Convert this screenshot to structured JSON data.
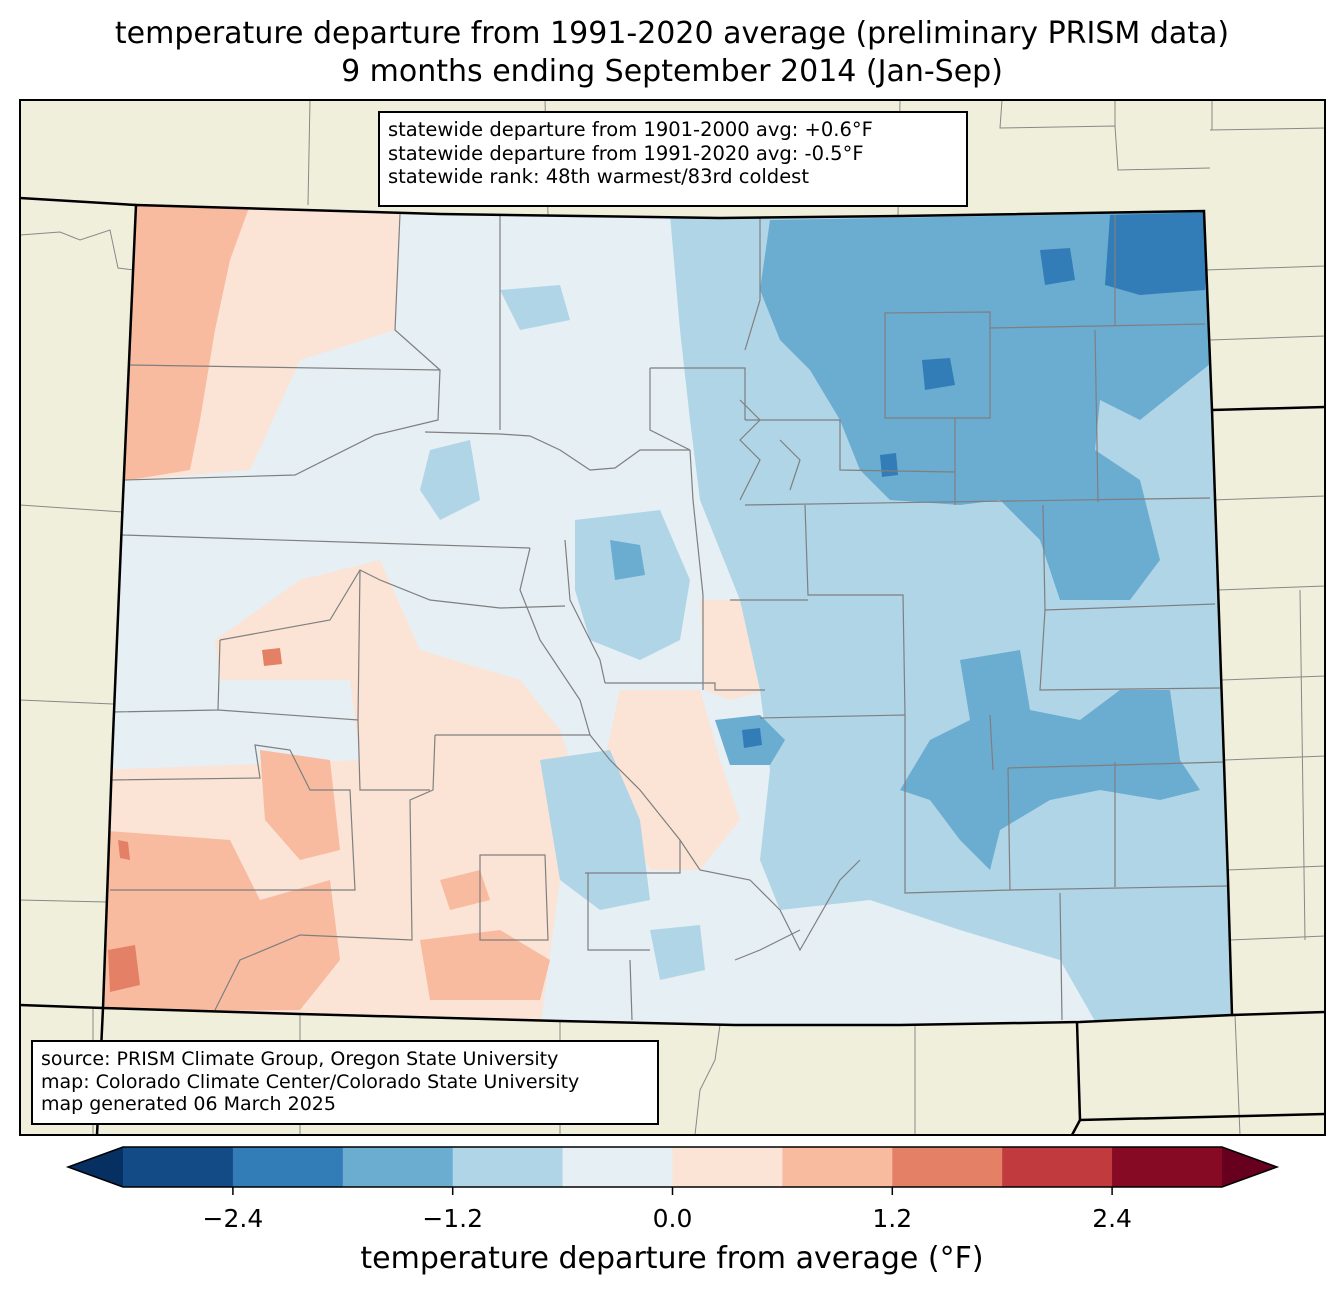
{
  "title": {
    "line1": "temperature departure from 1991-2020 average (preliminary PRISM data)",
    "line2": "9 months ending September 2014 (Jan-Sep)"
  },
  "stats": {
    "line1": "statewide departure from 1901-2000 avg: +0.6°F",
    "line2": "statewide departure from 1991-2020 avg: -0.5°F",
    "line3": "statewide rank: 48th warmest/83rd coldest"
  },
  "credits": {
    "source": "source: PRISM Climate Group, Oregon State University",
    "map": "map: Colorado Climate Center/Colorado State University",
    "generated": "map generated 06 March 2025"
  },
  "colorbar": {
    "label": "temperature departure from average (°F)",
    "ticks": [
      "−2.4",
      "−1.2",
      "0.0",
      "1.2",
      "2.4"
    ],
    "tick_values": [
      -2.4,
      -1.2,
      0.0,
      1.2,
      2.4
    ],
    "range": [
      -3.0,
      3.0
    ],
    "step": 0.6,
    "colors": [
      "#053061",
      "#134b87",
      "#327db7",
      "#6bacd1",
      "#b0d5e7",
      "#e6eff4",
      "#fbe4d6",
      "#f8bba0",
      "#e48066",
      "#c03a3e",
      "#870a24",
      "#67001f"
    ]
  },
  "map": {
    "land_color": "#efefdc",
    "background": "#ffffff"
  }
}
